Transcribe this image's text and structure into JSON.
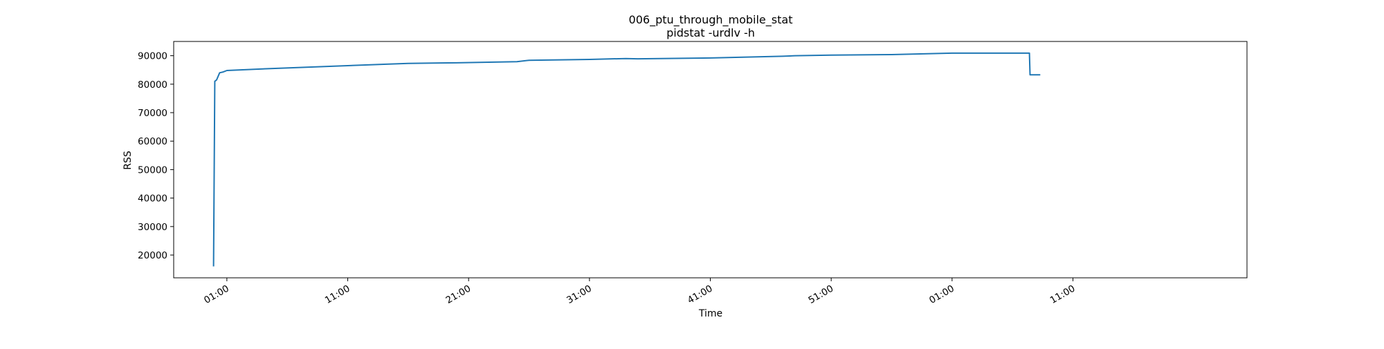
{
  "chart_data": {
    "type": "line",
    "title": "006_ptu_through_mobile_stat",
    "subtitle": "pidstat -urdlv -h",
    "xlabel": "Time",
    "ylabel": "RSS",
    "grid": false,
    "legend": "none",
    "xlim": [
      -4.4,
      84.4
    ],
    "ylim": [
      12000,
      95000
    ],
    "x_ticks": [
      {
        "value": 0,
        "label": "01:00"
      },
      {
        "value": 10,
        "label": "11:00"
      },
      {
        "value": 20,
        "label": "21:00"
      },
      {
        "value": 30,
        "label": "31:00"
      },
      {
        "value": 40,
        "label": "41:00"
      },
      {
        "value": 50,
        "label": "51:00"
      },
      {
        "value": 60,
        "label": "01:00"
      },
      {
        "value": 70,
        "label": "11:00"
      }
    ],
    "y_ticks": [
      20000,
      30000,
      40000,
      50000,
      60000,
      70000,
      80000,
      90000
    ],
    "series": [
      {
        "color": "#1f77b4",
        "x": [
          -1.1,
          -1.0,
          -0.85,
          -0.6,
          -0.3,
          0.0,
          3.8,
          10.0,
          13.0,
          15.0,
          19.0,
          24.0,
          25.0,
          30.0,
          33.0,
          34.0,
          40.0,
          46.0,
          47.0,
          50.0,
          55.0,
          60.0,
          66.4,
          66.45,
          67.3
        ],
        "y": [
          16000,
          81000,
          81500,
          84000,
          84300,
          84800,
          85500,
          86500,
          87000,
          87300,
          87500,
          87900,
          88400,
          88700,
          89000,
          88900,
          89200,
          89800,
          90000,
          90200,
          90400,
          90900,
          90900,
          83300,
          83300
        ]
      }
    ]
  }
}
